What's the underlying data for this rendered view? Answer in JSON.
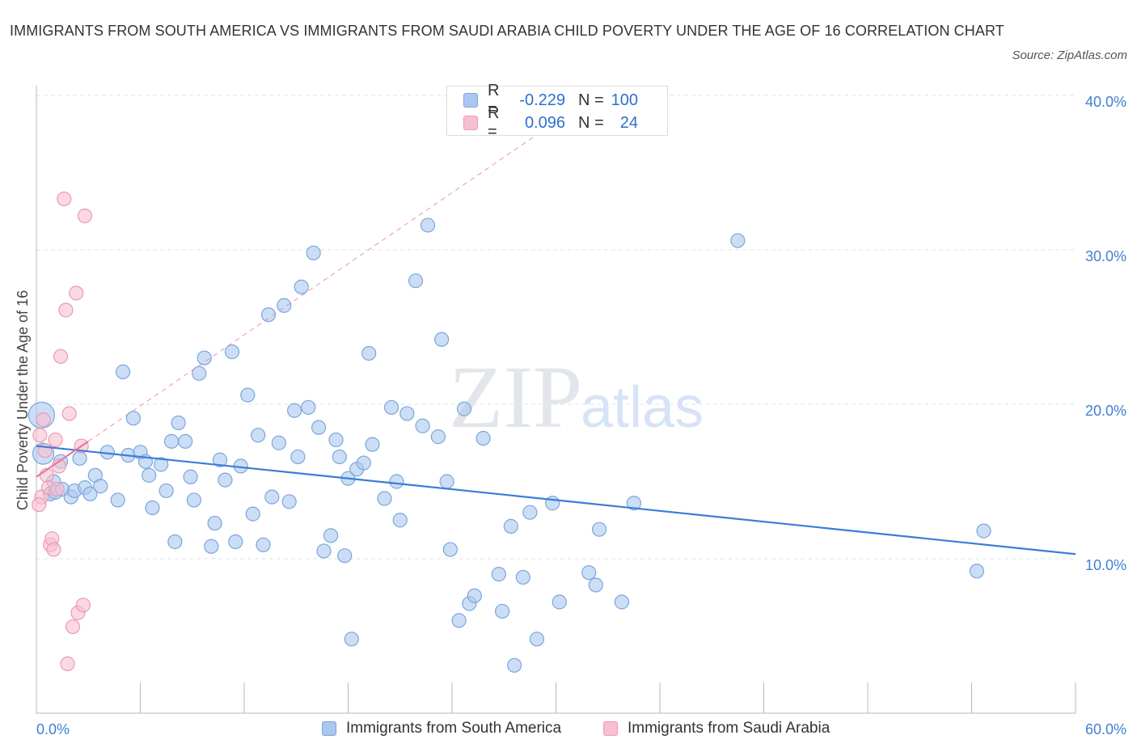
{
  "title": "IMMIGRANTS FROM SOUTH AMERICA VS IMMIGRANTS FROM SAUDI ARABIA CHILD POVERTY UNDER THE AGE OF 16 CORRELATION CHART",
  "source": "Source: ZipAtlas.com",
  "watermark": {
    "zip": "ZIP",
    "atlas": "atlas"
  },
  "legend_top": {
    "rows": [
      {
        "r_label": "R =",
        "r_value": "-0.229",
        "n_label": "N =",
        "n_value": "100"
      },
      {
        "r_label": "R =",
        "r_value": "0.096",
        "n_label": "N =",
        "n_value": "24"
      }
    ]
  },
  "legend_bottom": {
    "items": [
      "Immigrants from South America",
      "Immigrants from Saudi Arabia"
    ]
  },
  "colors": {
    "blue_fill": "#aac8ef",
    "blue_stroke": "#7aa6dc",
    "blue_line": "#3b7dd8",
    "pink_fill": "#f7bfcf",
    "pink_stroke": "#eb9ab3",
    "pink_line": "#e8799b",
    "axis_text": "#3f7fd6",
    "grid": "#dde3ea"
  },
  "chart_data": {
    "type": "scatter",
    "title": "IMMIGRANTS FROM SOUTH AMERICA VS IMMIGRANTS FROM SAUDI ARABIA CHILD POVERTY UNDER THE AGE OF 16 CORRELATION CHART",
    "xlabel": "",
    "ylabel": "Child Poverty Under the Age of 16",
    "xlim": [
      0,
      60
    ],
    "ylim": [
      0,
      40
    ],
    "x_tick_labels": [
      "0.0%",
      "60.0%"
    ],
    "y_ticks": [
      10,
      20,
      30,
      40
    ],
    "y_tick_labels": [
      "10.0%",
      "20.0%",
      "30.0%",
      "40.0%"
    ],
    "grid": true,
    "legend_position": "bottom",
    "series": [
      {
        "name": "Immigrants from South America",
        "R": -0.229,
        "N": 100,
        "trend": {
          "x0": 0,
          "y0": 17.3,
          "x1": 60,
          "y1": 10.3
        },
        "points": [
          [
            0.3,
            19.3
          ],
          [
            0.4,
            16.8
          ],
          [
            0.8,
            14.2
          ],
          [
            1.0,
            15.0
          ],
          [
            1.1,
            14.3
          ],
          [
            1.4,
            16.3
          ],
          [
            1.5,
            14.5
          ],
          [
            2.0,
            14.0
          ],
          [
            2.2,
            14.4
          ],
          [
            2.5,
            16.5
          ],
          [
            2.8,
            14.6
          ],
          [
            3.1,
            14.2
          ],
          [
            3.4,
            15.4
          ],
          [
            3.7,
            14.7
          ],
          [
            4.1,
            16.9
          ],
          [
            4.7,
            13.8
          ],
          [
            5.0,
            22.1
          ],
          [
            5.3,
            16.7
          ],
          [
            5.6,
            19.1
          ],
          [
            6.0,
            16.9
          ],
          [
            6.3,
            16.3
          ],
          [
            6.5,
            15.4
          ],
          [
            6.7,
            13.3
          ],
          [
            7.2,
            16.1
          ],
          [
            7.5,
            14.4
          ],
          [
            7.8,
            17.6
          ],
          [
            8.0,
            11.1
          ],
          [
            8.2,
            18.8
          ],
          [
            8.6,
            17.6
          ],
          [
            8.9,
            15.3
          ],
          [
            9.1,
            13.8
          ],
          [
            9.4,
            22.0
          ],
          [
            9.7,
            23.0
          ],
          [
            10.1,
            10.8
          ],
          [
            10.3,
            12.3
          ],
          [
            10.6,
            16.4
          ],
          [
            10.9,
            15.1
          ],
          [
            11.3,
            23.4
          ],
          [
            11.5,
            11.1
          ],
          [
            11.8,
            16.0
          ],
          [
            12.2,
            20.6
          ],
          [
            12.5,
            12.9
          ],
          [
            12.8,
            18.0
          ],
          [
            13.1,
            10.9
          ],
          [
            13.4,
            25.8
          ],
          [
            13.6,
            14.0
          ],
          [
            14.0,
            17.5
          ],
          [
            14.3,
            26.4
          ],
          [
            14.6,
            13.7
          ],
          [
            14.9,
            19.6
          ],
          [
            15.1,
            16.6
          ],
          [
            15.3,
            27.6
          ],
          [
            15.7,
            19.8
          ],
          [
            16.0,
            29.8
          ],
          [
            16.3,
            18.5
          ],
          [
            16.6,
            10.5
          ],
          [
            17.0,
            11.5
          ],
          [
            17.3,
            17.7
          ],
          [
            17.5,
            16.6
          ],
          [
            17.8,
            10.2
          ],
          [
            18.0,
            15.2
          ],
          [
            18.2,
            4.8
          ],
          [
            18.5,
            15.8
          ],
          [
            18.9,
            16.2
          ],
          [
            19.2,
            23.3
          ],
          [
            19.4,
            17.4
          ],
          [
            20.1,
            13.9
          ],
          [
            20.5,
            19.8
          ],
          [
            20.8,
            15.0
          ],
          [
            21.0,
            12.5
          ],
          [
            21.4,
            19.4
          ],
          [
            21.9,
            28.0
          ],
          [
            22.3,
            18.6
          ],
          [
            22.6,
            31.6
          ],
          [
            23.2,
            17.9
          ],
          [
            23.4,
            24.2
          ],
          [
            23.7,
            15.0
          ],
          [
            23.9,
            10.6
          ],
          [
            24.4,
            6.0
          ],
          [
            24.7,
            19.7
          ],
          [
            25.0,
            7.1
          ],
          [
            25.3,
            7.6
          ],
          [
            25.8,
            17.8
          ],
          [
            26.7,
            9.0
          ],
          [
            26.9,
            6.6
          ],
          [
            27.4,
            12.1
          ],
          [
            27.6,
            3.1
          ],
          [
            28.1,
            8.8
          ],
          [
            28.5,
            13.0
          ],
          [
            28.9,
            4.8
          ],
          [
            29.8,
            13.6
          ],
          [
            30.2,
            7.2
          ],
          [
            31.9,
            9.1
          ],
          [
            32.3,
            8.3
          ],
          [
            32.5,
            11.9
          ],
          [
            33.8,
            7.2
          ],
          [
            34.5,
            13.6
          ],
          [
            40.5,
            30.6
          ],
          [
            54.3,
            9.2
          ],
          [
            54.7,
            11.8
          ]
        ]
      },
      {
        "name": "Immigrants from Saudi Arabia",
        "R": 0.096,
        "N": 24,
        "trend": {
          "x0": 0,
          "y0": 15.3,
          "x1": 3,
          "y1": 17.6
        },
        "points": [
          [
            0.2,
            18.0
          ],
          [
            0.3,
            14.0
          ],
          [
            0.4,
            19.0
          ],
          [
            0.5,
            17.0
          ],
          [
            0.6,
            15.4
          ],
          [
            0.7,
            14.6
          ],
          [
            0.8,
            10.9
          ],
          [
            0.9,
            11.3
          ],
          [
            1.0,
            10.6
          ],
          [
            1.1,
            17.7
          ],
          [
            1.2,
            14.5
          ],
          [
            1.4,
            23.1
          ],
          [
            1.6,
            33.3
          ],
          [
            1.7,
            26.1
          ],
          [
            1.8,
            3.2
          ],
          [
            1.9,
            19.4
          ],
          [
            2.1,
            5.6
          ],
          [
            2.3,
            27.2
          ],
          [
            2.4,
            6.5
          ],
          [
            2.6,
            17.3
          ],
          [
            2.7,
            7.0
          ],
          [
            2.8,
            32.2
          ],
          [
            0.15,
            13.5
          ],
          [
            1.3,
            16.0
          ]
        ]
      }
    ]
  }
}
